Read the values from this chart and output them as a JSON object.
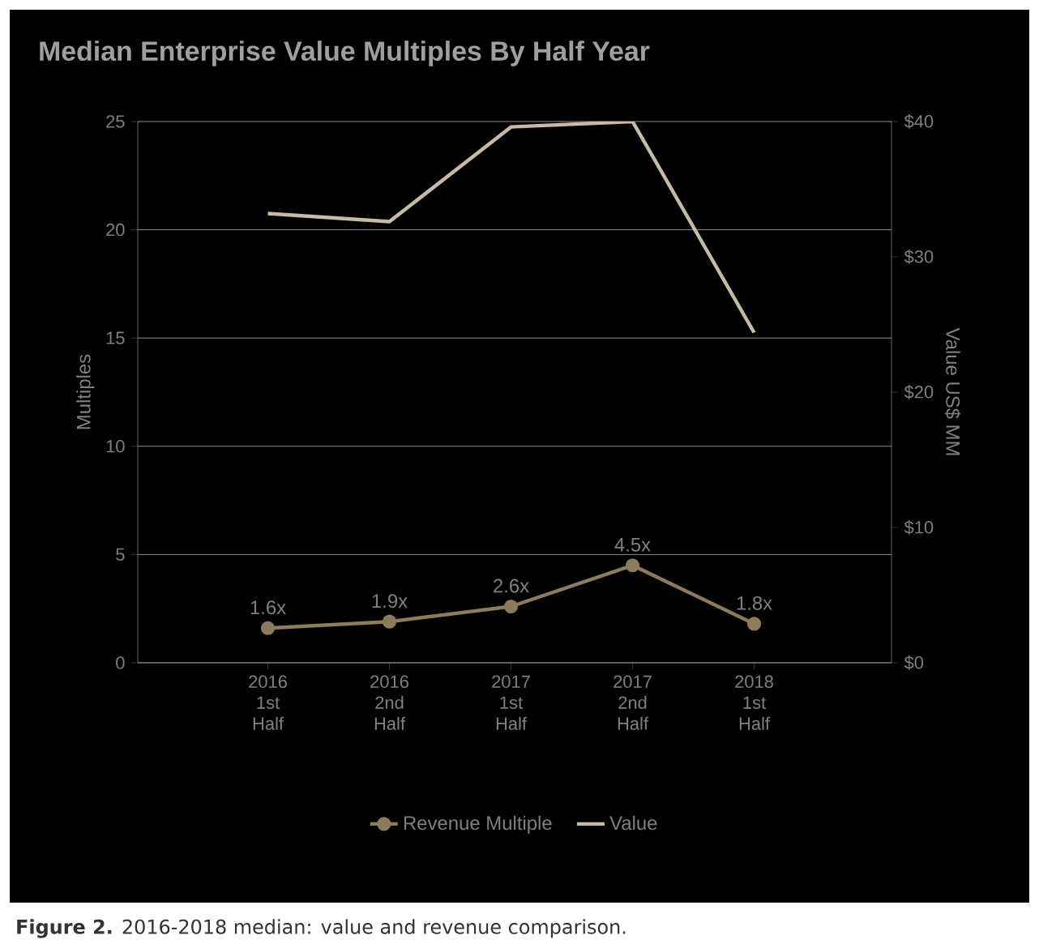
{
  "chart_data": {
    "type": "line",
    "title": "Median Enterprise Value Multiples By Half Year",
    "categories": [
      "2016 1st Half",
      "2016 2nd Half",
      "2017 1st Half",
      "2017 2nd Half",
      "2018 1st Half"
    ],
    "series": [
      {
        "name": "Revenue Multiple",
        "color": "#8c7b5c",
        "values": [
          1.6,
          1.9,
          2.6,
          4.5,
          1.8
        ],
        "marker": "circle",
        "value_labels": [
          "1.6x",
          "1.9x",
          "2.6x",
          "4.5x",
          "1.8x"
        ]
      },
      {
        "name": "Value",
        "color": "#c8bba5",
        "values": [
          33.2,
          32.6,
          39.6,
          40.0,
          24.4
        ],
        "axis": "y2",
        "marker": "none"
      }
    ],
    "ylabel": "Multiples",
    "y2label": "Value US$ MM",
    "ylim": [
      0,
      25
    ],
    "yticks": [
      0,
      5,
      10,
      15,
      20,
      25
    ],
    "y2lim": [
      0,
      40
    ],
    "y2ticks": [
      {
        "value": 0,
        "label": "$0"
      },
      {
        "value": 10,
        "label": "$10"
      },
      {
        "value": 20,
        "label": "$20"
      },
      {
        "value": 30,
        "label": "$30"
      },
      {
        "value": 40,
        "label": "$40"
      }
    ],
    "grid": "y",
    "legend": "bottom",
    "annotations": [
      "**Figure 2.** 2016-2018 median: value and revenue comparison."
    ]
  }
}
